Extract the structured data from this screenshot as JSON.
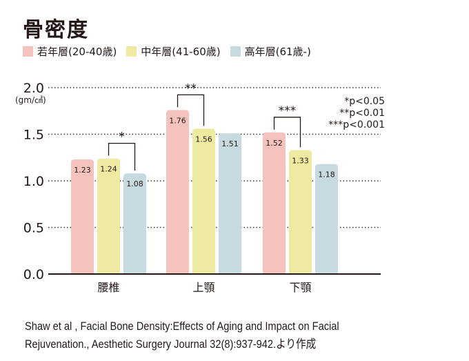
{
  "chart_data": {
    "type": "bar",
    "title": "骨密度",
    "ylabel": "(gm/㎠)",
    "ylim": [
      0,
      2.0
    ],
    "yticks": [
      "0.0",
      "0.5",
      "1.0",
      "1.5",
      "2.0"
    ],
    "ytick_values": [
      0,
      0.5,
      1.0,
      1.5,
      2.0
    ],
    "grid": "dotted horizontal",
    "legend_placement": "top",
    "categories": [
      "腰椎",
      "上顎",
      "下顎"
    ],
    "series": [
      {
        "name": "若年層(20-40歳)",
        "color": "#f5c3bd",
        "values": [
          1.23,
          1.76,
          1.52
        ],
        "labels": [
          "1.23",
          "1.76",
          "1.52"
        ]
      },
      {
        "name": "中年層(41-60歳)",
        "color": "#eeeaa2",
        "values": [
          1.24,
          1.56,
          1.33
        ],
        "labels": [
          "1.24",
          "1.56",
          "1.33"
        ]
      },
      {
        "name": "高年層(61歳-)",
        "color": "#c7dadf",
        "values": [
          1.08,
          1.51,
          1.18
        ],
        "labels": [
          "1.08",
          "1.51",
          "1.18"
        ]
      }
    ],
    "significance": [
      {
        "category": "腰椎",
        "between": [
          1,
          2
        ],
        "mark": "*"
      },
      {
        "category": "上顎",
        "between": [
          0,
          1
        ],
        "mark": "**"
      },
      {
        "category": "下顎",
        "between": [
          0,
          1
        ],
        "mark": "***"
      }
    ],
    "significance_key": [
      "*p<0.05",
      "**p<0.01",
      "***p<0.001"
    ]
  },
  "citation": {
    "line1": "Shaw et al , Facial Bone Density:Effects of Aging and Impact on Facial",
    "line2": "Rejuvenation., Aesthetic Surgery Journal 32(8):937-942.より作成"
  }
}
